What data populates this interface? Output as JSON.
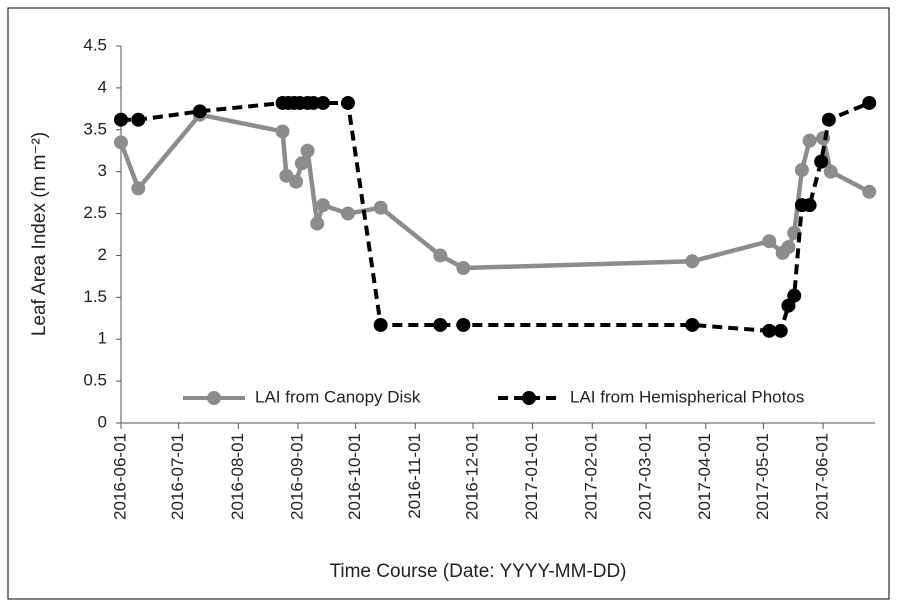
{
  "chart_data": {
    "type": "line",
    "xlabel": "Time Course (Date: YYYY-MM-DD)",
    "ylabel": "Leaf Area Index (m m⁻²)",
    "xlim": [
      "2016-06-01",
      "2017-06-28"
    ],
    "xticks": [
      "2016-06-01",
      "2016-07-01",
      "2016-08-01",
      "2016-09-01",
      "2016-10-01",
      "2016-11-01",
      "2016-12-01",
      "2017-01-01",
      "2017-02-01",
      "2017-03-01",
      "2017-04-01",
      "2017-05-01",
      "2017-06-01"
    ],
    "ylim": [
      0,
      4.5
    ],
    "yticks": [
      0,
      0.5,
      1,
      1.5,
      2,
      2.5,
      3,
      3.5,
      4,
      4.5
    ],
    "legend": "bottom",
    "series": [
      {
        "name": "LAI from Canopy Disk",
        "color": "#8c8c8c",
        "dash": false,
        "x": [
          "2016-06-01",
          "2016-06-10",
          "2016-07-12",
          "2016-08-24",
          "2016-08-26",
          "2016-08-31",
          "2016-09-03",
          "2016-09-06",
          "2016-09-11",
          "2016-09-14",
          "2016-09-27",
          "2016-10-14",
          "2016-11-14",
          "2016-11-26",
          "2017-03-25",
          "2017-05-04",
          "2017-05-11",
          "2017-05-14",
          "2017-05-17",
          "2017-05-21",
          "2017-05-25",
          "2017-06-01",
          "2017-06-05",
          "2017-06-25"
        ],
        "values": [
          3.35,
          2.8,
          3.68,
          3.48,
          2.95,
          2.88,
          3.1,
          3.25,
          2.38,
          2.6,
          2.5,
          2.57,
          2.0,
          1.85,
          1.93,
          2.17,
          2.03,
          2.1,
          2.27,
          3.02,
          3.37,
          3.4,
          3.0,
          2.76
        ]
      },
      {
        "name": "LAI from Hemispherical Photos",
        "color": "#000000",
        "dash": true,
        "x": [
          "2016-06-01",
          "2016-06-10",
          "2016-07-12",
          "2016-08-24",
          "2016-08-27",
          "2016-08-30",
          "2016-09-02",
          "2016-09-06",
          "2016-09-09",
          "2016-09-14",
          "2016-09-27",
          "2016-10-14",
          "2016-11-14",
          "2016-11-26",
          "2017-03-25",
          "2017-05-04",
          "2017-05-10",
          "2017-05-14",
          "2017-05-17",
          "2017-05-21",
          "2017-05-25",
          "2017-05-31",
          "2017-06-04",
          "2017-06-25"
        ],
        "values": [
          3.62,
          3.62,
          3.72,
          3.82,
          3.82,
          3.82,
          3.82,
          3.82,
          3.82,
          3.82,
          3.82,
          1.17,
          1.17,
          1.17,
          1.17,
          1.1,
          1.1,
          1.4,
          1.52,
          2.6,
          2.6,
          3.12,
          3.62,
          3.82
        ]
      }
    ]
  }
}
